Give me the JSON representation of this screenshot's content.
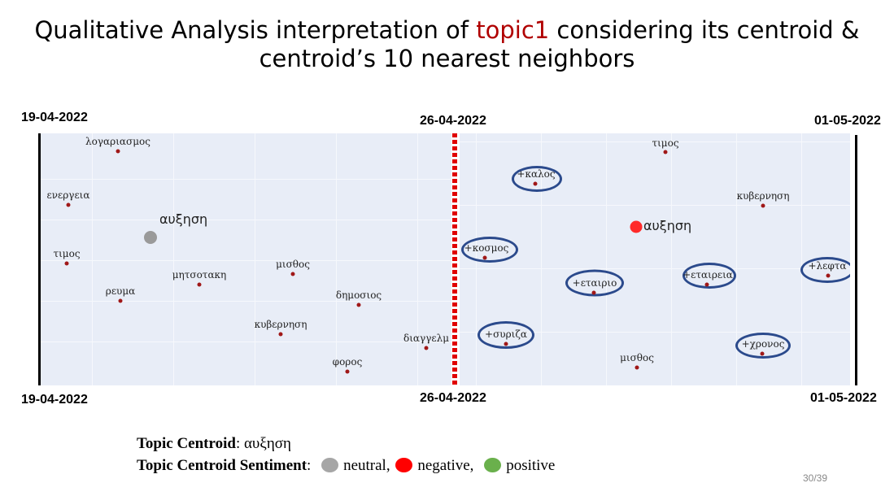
{
  "slide": {
    "title_part1": "Qualitative Analysis interpretation of ",
    "title_topic": "topic1",
    "title_part2": " considering its centroid &",
    "title_line2": "centroid’s 10 nearest neighbors",
    "page_number": "30/39"
  },
  "dates": {
    "top_left": "19-04-2022",
    "top_mid": "26-04-2022",
    "top_right": "01-05-2022",
    "bottom_left": "19-04-2022",
    "bottom_mid": "26-04-2022",
    "bottom_right": "01-05-2022"
  },
  "colors": {
    "topic_red": "#b00000",
    "neutral": "#9a9a9a",
    "negative": "#ff0000",
    "positive": "#6ab04c",
    "ellipse_blue": "#2b4a8c",
    "point_red": "#a01818",
    "panel_bg": "#e8edf7"
  },
  "left_panel": {
    "centroid_word": "αυξηση",
    "centroid_sentiment": "neutral",
    "words": [
      "λογαριασμος",
      "ενεργεια",
      "τιμος",
      "ρευμα",
      "μητσοτακη",
      "μισθος",
      "δημοσιος",
      "κυβερνηση",
      "φορος",
      "διαγγελμ"
    ]
  },
  "right_panel": {
    "centroid_word": "αυξηση",
    "centroid_sentiment": "negative",
    "words": [
      "τιμος",
      "+καλος",
      "κυβερνηση",
      "+κοσμος",
      "+εταιριο",
      "+εταιρεια",
      "+λεφτα",
      "+συριζα",
      "+χρονος",
      "μισθος"
    ]
  },
  "legend": {
    "centroid_label": "Topic Centroid",
    "centroid_value": ": αυξηση",
    "sentiment_label": "Topic Centroid Sentiment",
    "sentiment_colon": ":",
    "neutral": "neutral,",
    "negative": "negative,",
    "positive": "positive"
  }
}
